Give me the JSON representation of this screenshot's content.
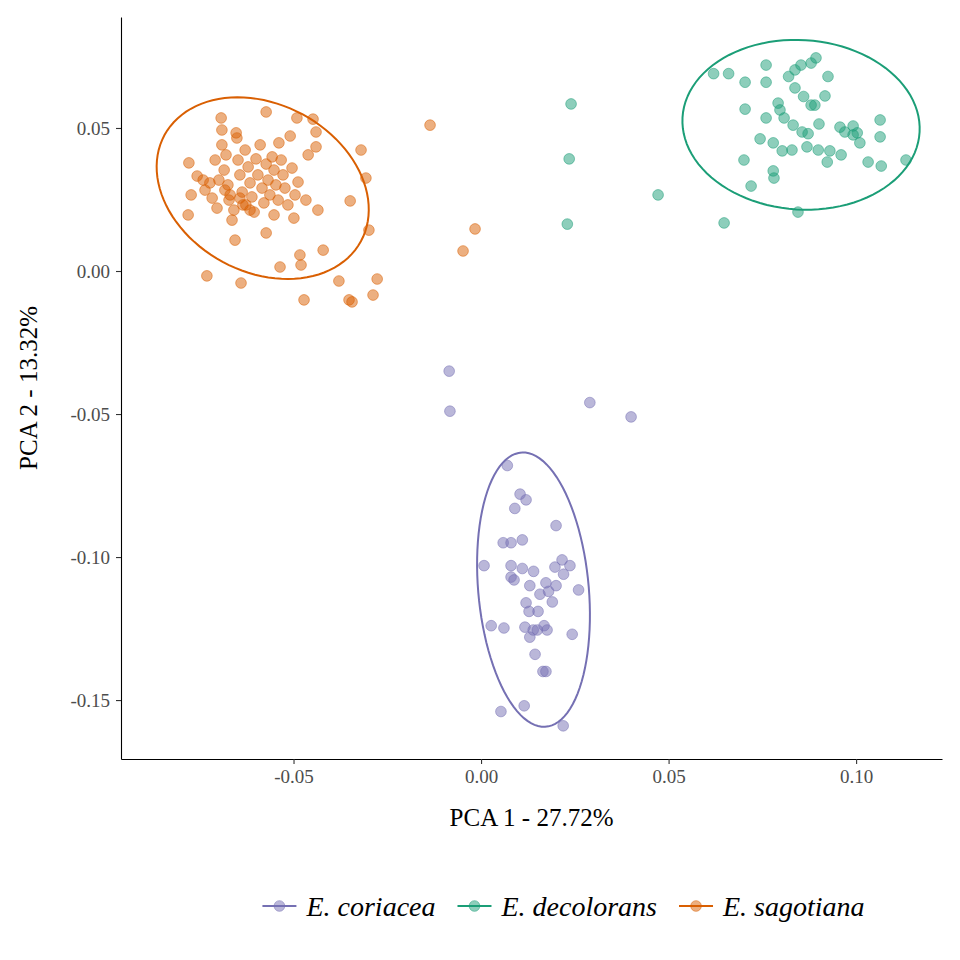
{
  "chart_data": {
    "type": "scatter",
    "x_label": "PCA 1 - 27.72%",
    "y_label": "PCA 2 - 13.32%",
    "xlim": [
      -0.096,
      0.1229
    ],
    "ylim": [
      -0.1706,
      0.0888
    ],
    "xticks": [
      -0.05,
      {
        "value": 0,
        "label": "0.00"
      },
      0.05,
      {
        "value": 0.1,
        "label": "0.10"
      }
    ],
    "yticks": [
      -0.15,
      {
        "value": -0.1,
        "label": "-0.10"
      },
      -0.05,
      {
        "value": 0,
        "label": "0.00"
      },
      0.05
    ],
    "grid": false,
    "legend": "bottom",
    "marker": "circle",
    "series": [
      {
        "name": "E. coriacea",
        "color": "#7570b3",
        "x": [
          -0.0085,
          -0.0083,
          0.029,
          0.04,
          0.007,
          0.0104,
          0.009,
          0.012,
          0.0059,
          0.008,
          0.011,
          0.02,
          0.0008,
          0.008,
          0.011,
          0.0216,
          0.0237,
          0.0197,
          0.008,
          0.0088,
          0.014,
          0.022,
          0.0173,
          0.013,
          0.02,
          0.018,
          0.0157,
          0.026,
          0.012,
          0.0128,
          0.019,
          0.0152,
          0.0027,
          0.0061,
          0.0139,
          0.0168,
          0.0176,
          0.015,
          0.0117,
          0.0243,
          0.013,
          0.0144,
          0.0165,
          0.0173,
          0.0053,
          0.0115,
          0.0219
        ],
        "values": [
          -0.035,
          -0.049,
          -0.046,
          -0.051,
          -0.068,
          -0.078,
          -0.083,
          -0.08,
          -0.095,
          -0.095,
          -0.094,
          -0.089,
          -0.103,
          -0.103,
          -0.104,
          -0.101,
          -0.103,
          -0.1035,
          -0.107,
          -0.108,
          -0.105,
          -0.106,
          -0.109,
          -0.11,
          -0.11,
          -0.112,
          -0.113,
          -0.1115,
          -0.116,
          -0.119,
          -0.1157,
          -0.119,
          -0.124,
          -0.1248,
          -0.1255,
          -0.124,
          -0.1255,
          -0.1255,
          -0.1245,
          -0.127,
          -0.128,
          -0.134,
          -0.14,
          -0.14,
          -0.154,
          -0.152,
          -0.159
        ]
      },
      {
        "name": "E. decolorans",
        "color": "#1b9e77",
        "x": [
          0.024,
          0.0235,
          0.023,
          0.0472,
          0.0648,
          0.062,
          0.066,
          0.076,
          0.076,
          0.0704,
          0.0792,
          0.082,
          0.0837,
          0.088,
          0.0893,
          0.0853,
          0.0925,
          0.0837,
          0.086,
          0.088,
          0.089,
          0.0917,
          0.0797,
          0.076,
          0.0808,
          0.0832,
          0.0856,
          0.0872,
          0.0901,
          0.0957,
          0.0992,
          0.1003,
          0.097,
          0.101,
          0.1064,
          0.0992,
          0.0744,
          0.0779,
          0.0803,
          0.0829,
          0.0869,
          0.0899,
          0.093,
          0.096,
          0.0923,
          0.1032,
          0.1067,
          0.1133,
          0.0701,
          0.0779,
          0.0781,
          0.072,
          0.0845,
          0.0704,
          0.1064
        ],
        "values": [
          0.0584,
          0.0392,
          0.0164,
          0.0266,
          0.0168,
          0.069,
          0.069,
          0.072,
          0.066,
          0.0566,
          0.0587,
          0.068,
          0.0703,
          0.0727,
          0.0745,
          0.072,
          0.068,
          0.064,
          0.061,
          0.058,
          0.058,
          0.0612,
          0.0563,
          0.0535,
          0.0535,
          0.051,
          0.0486,
          0.048,
          0.0514,
          0.0503,
          0.0507,
          0.0483,
          0.0486,
          0.0448,
          0.0469,
          0.0476,
          0.0462,
          0.0448,
          0.042,
          0.0423,
          0.0434,
          0.0423,
          0.042,
          0.0406,
          0.0381,
          0.0381,
          0.0367,
          0.0388,
          0.0388,
          0.035,
          0.0325,
          0.0297,
          0.0206,
          0.066,
          0.0528
        ]
      },
      {
        "name": "E. sagotiana",
        "color": "#d95f02",
        "x": [
          -0.0136,
          -0.0016,
          -0.0048,
          -0.0573,
          -0.0491,
          -0.0448,
          -0.044,
          -0.044,
          -0.032,
          -0.0307,
          -0.0299,
          -0.0349,
          -0.0421,
          -0.0483,
          -0.048,
          -0.0536,
          -0.0472,
          -0.0379,
          -0.0352,
          -0.0344,
          -0.0277,
          -0.0288,
          -0.0731,
          -0.064,
          -0.0435,
          -0.0779,
          -0.0773,
          -0.0781,
          -0.0757,
          -0.0741,
          -0.0736,
          -0.0723,
          -0.0717,
          -0.0709,
          -0.0704,
          -0.0691,
          -0.0691,
          -0.0685,
          -0.068,
          -0.0675,
          -0.0672,
          -0.0664,
          -0.0656,
          -0.0653,
          -0.0651,
          -0.0648,
          -0.0643,
          -0.0637,
          -0.0635,
          -0.0629,
          -0.0621,
          -0.0616,
          -0.0611,
          -0.0605,
          -0.06,
          -0.0595,
          -0.0589,
          -0.0584,
          -0.0579,
          -0.0573,
          -0.0568,
          -0.0563,
          -0.0557,
          -0.0552,
          -0.0547,
          -0.0541,
          -0.0539,
          -0.0533,
          -0.0528,
          -0.0523,
          -0.0515,
          -0.0509,
          -0.0504,
          -0.0496,
          -0.0488,
          -0.0467,
          -0.0461,
          -0.0499,
          -0.0552,
          -0.0573,
          -0.0693,
          -0.0669,
          -0.0643,
          -0.0627,
          -0.0659,
          -0.0683,
          -0.0699,
          -0.0616
        ],
        "values": [
          0.051,
          0.0147,
          0.007,
          0.0556,
          0.0535,
          0.0531,
          0.0486,
          0.0434,
          0.0423,
          0.0325,
          0.0143,
          0.0245,
          0.0073,
          0.0056,
          0.0021,
          0.0014,
          -0.0101,
          -0.0035,
          -0.0101,
          -0.0108,
          -0.0028,
          -0.0084,
          -0.0017,
          -0.0042,
          0.0213,
          0.0378,
          0.0266,
          0.0196,
          0.0332,
          0.0318,
          0.0283,
          0.0308,
          0.0255,
          0.0388,
          0.022,
          0.0493,
          0.0441,
          0.0353,
          0.0406,
          0.0301,
          0.0248,
          0.0178,
          0.0108,
          0.0483,
          0.0465,
          0.0388,
          0.0336,
          0.0276,
          0.0231,
          0.0423,
          0.0364,
          0.0308,
          0.0259,
          0.0206,
          0.0392,
          0.0336,
          0.0441,
          0.029,
          0.0238,
          0.0374,
          0.0318,
          0.0266,
          0.0399,
          0.0353,
          0.0301,
          0.0248,
          0.0448,
          0.0388,
          0.0336,
          0.029,
          0.0231,
          0.0472,
          0.036,
          0.0266,
          0.0311,
          0.0248,
          0.0406,
          0.0185,
          0.0196,
          0.0133,
          0.0535,
          0.0266,
          0.0255,
          0.0231,
          0.0213,
          0.0283,
          0.0318,
          0.0213
        ]
      }
    ]
  }
}
